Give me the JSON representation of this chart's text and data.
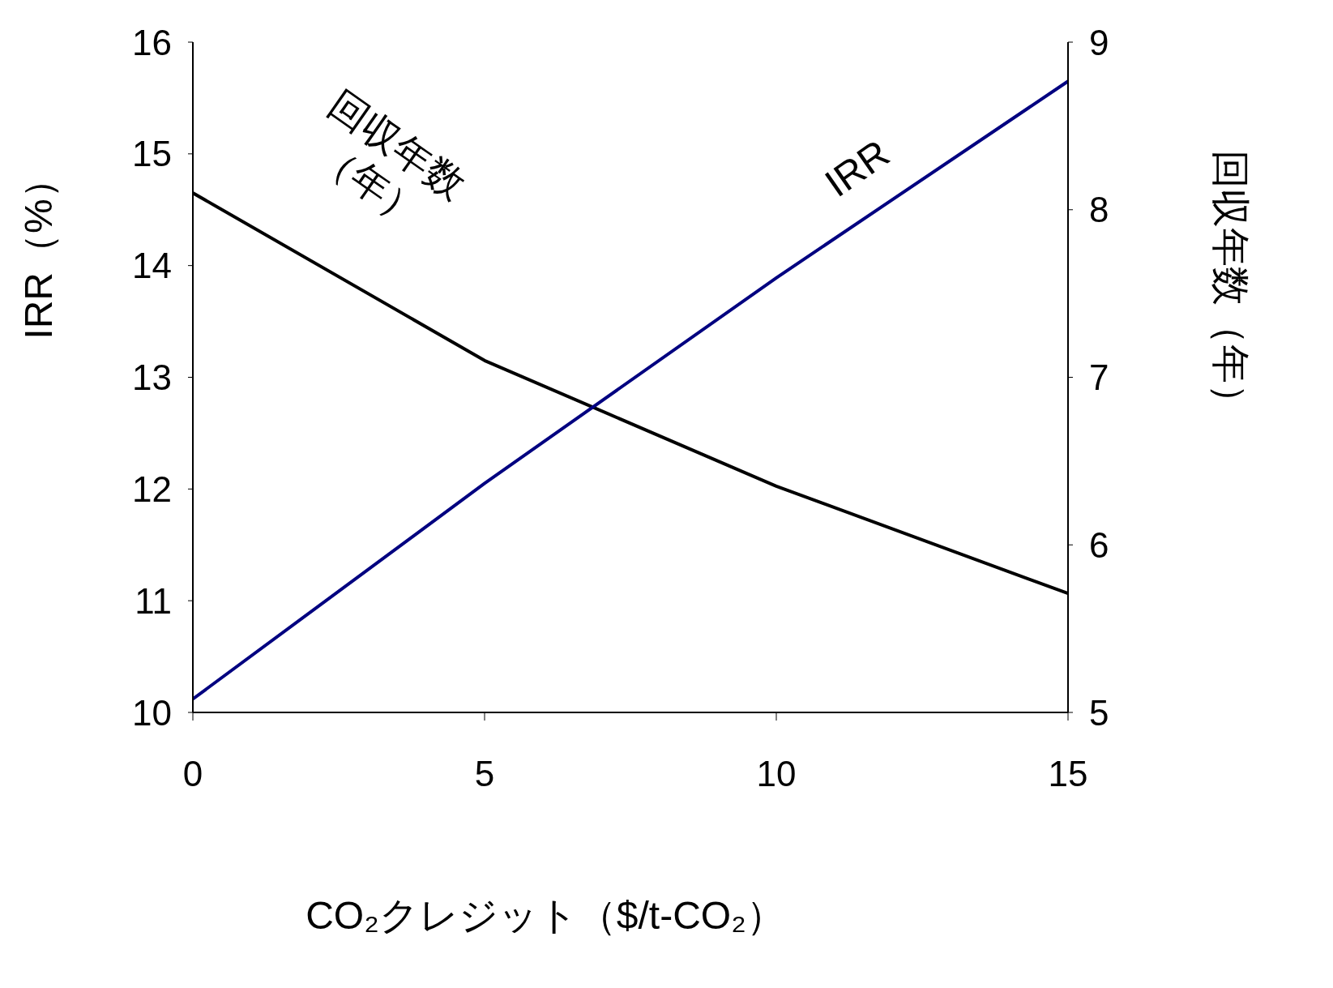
{
  "chart_data": {
    "type": "line",
    "xlabel": "CO₂クレジット（$/t-CO₂）",
    "ylabel": "IRR（%）",
    "y2label": "回収年数（年）",
    "x": [
      0,
      5,
      10,
      15
    ],
    "xlim": [
      0,
      15
    ],
    "xticks": [
      0,
      5,
      10,
      15
    ],
    "ylim": [
      10,
      16
    ],
    "yticks": [
      10,
      11,
      12,
      13,
      14,
      15,
      16
    ],
    "y2lim": [
      5,
      9
    ],
    "y2ticks": [
      5,
      6,
      7,
      8,
      9
    ],
    "series": [
      {
        "name": "回収年数（年）",
        "color": "#000000",
        "values": [
          8.1,
          7.1,
          6.35,
          5.71
        ],
        "axis": "y2"
      },
      {
        "name": "IRR",
        "color": "#000080",
        "values": [
          10.12,
          12.05,
          13.89,
          15.65
        ]
      }
    ],
    "marker": "none",
    "line_style": "solid"
  }
}
